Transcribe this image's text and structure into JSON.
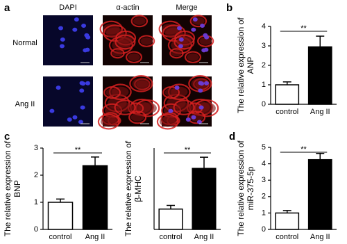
{
  "figure": {
    "panel_a": {
      "label": "a",
      "columns": [
        "DAPI",
        "α-actin",
        "Merge"
      ],
      "rows": [
        "Normal",
        "Ang II"
      ]
    }
  },
  "chart_data": [
    {
      "type": "bar",
      "panel": "b",
      "ylabel": [
        "The relative expression of",
        "ANP"
      ],
      "categories": [
        "control",
        "Ang II"
      ],
      "values": [
        1.0,
        2.95
      ],
      "errors": [
        0.15,
        0.55
      ],
      "colors": [
        "#ffffff",
        "#000000"
      ],
      "edgecolor": "#000000",
      "ylim": [
        0,
        4
      ],
      "yticks": [
        0,
        1,
        2,
        3,
        4
      ],
      "significance": "**"
    },
    {
      "type": "bar",
      "panel": "c",
      "ylabel": [
        "The relative expression of",
        "BNP"
      ],
      "categories": [
        "control",
        "Ang II"
      ],
      "values": [
        1.0,
        2.35
      ],
      "errors": [
        0.12,
        0.32
      ],
      "colors": [
        "#ffffff",
        "#000000"
      ],
      "edgecolor": "#000000",
      "ylim": [
        0,
        3
      ],
      "yticks": [
        0,
        1,
        2,
        3
      ],
      "significance": "**"
    },
    {
      "type": "bar",
      "ylabel": [
        "The relative expression of",
        "β-MHC"
      ],
      "categories": [
        "control",
        "Ang II"
      ],
      "values": [
        1.0,
        3.0
      ],
      "errors": [
        0.18,
        0.55
      ],
      "colors": [
        "#ffffff",
        "#000000"
      ],
      "edgecolor": "#000000",
      "ylim": [
        0,
        4
      ],
      "significance": "**"
    },
    {
      "type": "bar",
      "panel": "d",
      "ylabel": [
        "The relative expression of",
        "miR-375-5p"
      ],
      "categories": [
        "control",
        "Ang II"
      ],
      "values": [
        1.0,
        4.25
      ],
      "errors": [
        0.15,
        0.38
      ],
      "colors": [
        "#ffffff",
        "#000000"
      ],
      "edgecolor": "#000000",
      "ylim": [
        0,
        5
      ],
      "yticks": [
        0,
        1,
        2,
        3,
        4,
        5
      ],
      "significance": "**"
    }
  ]
}
